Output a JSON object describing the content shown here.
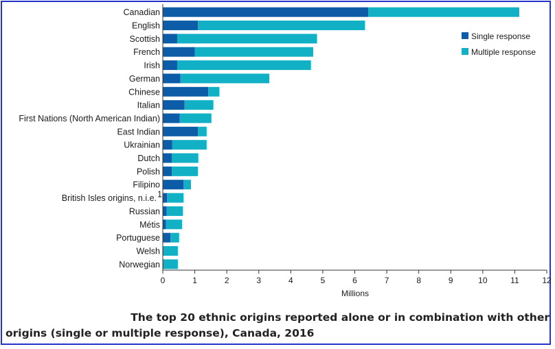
{
  "chart_data": {
    "type": "bar",
    "orientation": "horizontal",
    "stacked": true,
    "categories": [
      "Canadian",
      "English",
      "Scottish",
      "French",
      "Irish",
      "German",
      "Chinese",
      "Italian",
      "First Nations (North American Indian)",
      "East Indian",
      "Ukrainian",
      "Dutch",
      "Polish",
      "Filipino",
      "British Isles origins, n.i.e.",
      "Russian",
      "Métis",
      "Portuguese",
      "Welsh",
      "Norwegian"
    ],
    "footnote_marks": {
      "British Isles origins, n.i.e.": "1"
    },
    "series": [
      {
        "name": "Single response",
        "color": "#0d5ca8",
        "values": [
          6.42,
          1.1,
          0.45,
          1.0,
          0.45,
          0.55,
          1.42,
          0.68,
          0.53,
          1.1,
          0.29,
          0.28,
          0.28,
          0.65,
          0.13,
          0.12,
          0.1,
          0.24,
          0.02,
          0.02
        ]
      },
      {
        "name": "Multiple response",
        "color": "#11b0c5",
        "values": [
          4.72,
          5.22,
          4.37,
          3.7,
          4.18,
          2.78,
          0.35,
          0.9,
          0.99,
          0.27,
          1.08,
          0.83,
          0.82,
          0.23,
          0.52,
          0.51,
          0.5,
          0.27,
          0.45,
          0.45
        ]
      }
    ],
    "xlabel": "Millions",
    "xlim": [
      0,
      12
    ],
    "xticks": [
      "0",
      "1",
      "2",
      "3",
      "4",
      "5",
      "6",
      "7",
      "8",
      "9",
      "10",
      "11",
      "12"
    ],
    "legend_position": "top-right",
    "grid": false
  },
  "caption": {
    "line1": "The top 20 ethnic origins reported alone or in combination with other",
    "line2": "origins (single or multiple response), Canada, 2016"
  }
}
